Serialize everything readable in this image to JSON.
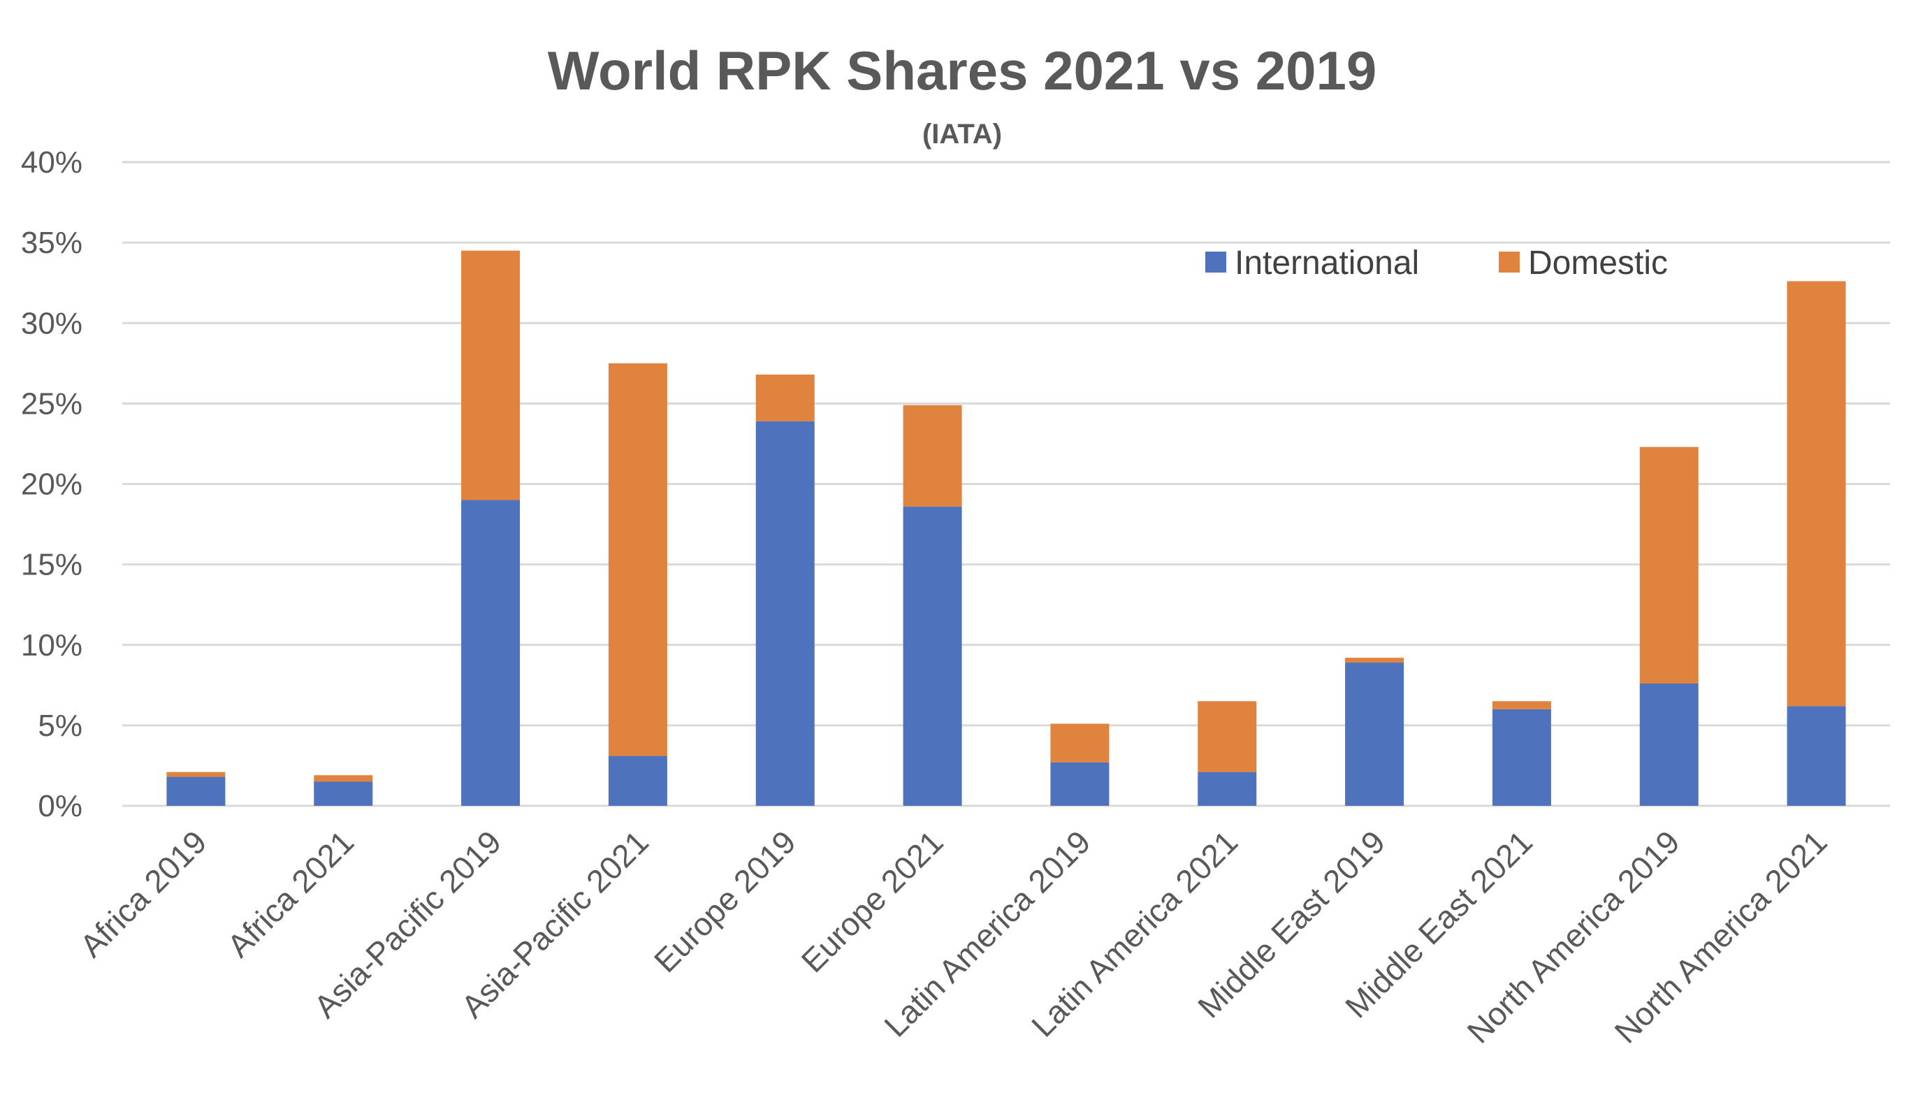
{
  "chart_data": {
    "type": "bar",
    "stacked": true,
    "title": "World RPK Shares 2021 vs 2019",
    "subtitle": "(IATA)",
    "categories": [
      "Africa 2019",
      "Africa 2021",
      "Asia-Pacific 2019",
      "Asia-Pacific 2021",
      "Europe 2019",
      "Europe 2021",
      "Latin America 2019",
      "Latin America 2021",
      "Middle East 2019",
      "Middle East 2021",
      "North America 2019",
      "North America 2021"
    ],
    "series": [
      {
        "name": "International",
        "color": "#4f72bd",
        "values": [
          1.8,
          1.5,
          19.0,
          3.1,
          23.9,
          18.6,
          2.7,
          2.1,
          8.9,
          6.0,
          7.6,
          6.2
        ]
      },
      {
        "name": "Domestic",
        "color": "#e0833f",
        "values": [
          0.3,
          0.4,
          15.5,
          24.4,
          2.9,
          6.3,
          2.4,
          4.4,
          0.3,
          0.5,
          14.7,
          26.4
        ]
      }
    ],
    "yticks": [
      "0%",
      "5%",
      "10%",
      "15%",
      "20%",
      "25%",
      "30%",
      "35%",
      "40%"
    ],
    "ylim": [
      0,
      40
    ],
    "ytick_step": 5,
    "xlabel": "",
    "ylabel": "",
    "grid": true,
    "legend_position": "top-right"
  }
}
